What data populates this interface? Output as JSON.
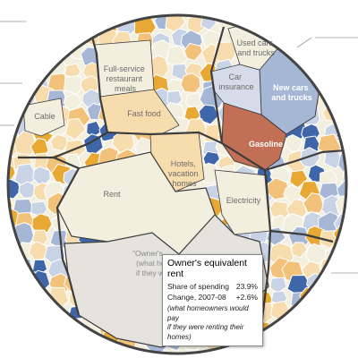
{
  "chart_data": {
    "type": "voronoi-treemap",
    "categories": [
      "Used cars and trucks",
      "Car insurance",
      "New cars and trucks",
      "Gasoline",
      "Full-service restaurant meals",
      "Fast food",
      "Cable",
      "Hotels, vacation homes",
      "Rent",
      "Electricity",
      "\"Owner's equivalent rent\" (what homeowners would pay if they were renting their homes)"
    ],
    "highlighted": "Owner's equivalent rent",
    "colors": {
      "increase_light": "#f7dcae",
      "increase_mid": "#f2c27a",
      "increase_strong": "#e8a934",
      "decrease_light": "#c9d3e6",
      "decrease_mid": "#a6b7d6",
      "decrease_strong": "#3f66a8",
      "gasoline": "#c27055",
      "neutral": "#f3efdf",
      "highlight": "#e4e3de",
      "border": "#3d3d3d"
    }
  },
  "labels": {
    "used_cars": [
      "Used cars",
      "and trucks"
    ],
    "car_insurance": [
      "Car",
      "insurance"
    ],
    "new_cars": [
      "New cars",
      "and trucks"
    ],
    "gasoline": "Gasoline",
    "restaurants": [
      "Full-service",
      "restaurant",
      "meals"
    ],
    "fast_food": "Fast food",
    "cable": "Cable",
    "hotels": [
      "Hotels,",
      "vacation",
      "homes"
    ],
    "rent": "Rent",
    "electricity": "Electricity",
    "oer": [
      "\"Owner's",
      "(what home",
      "if they w"
    ]
  },
  "tooltip": {
    "title": "Owner's equivalent rent",
    "share_label": "Share of spending",
    "share_value": "23.9%",
    "change_label": "Change, 2007-08",
    "change_value": "+2.6%",
    "note_lines": [
      "(what homeowners would pay",
      "if they were renting their",
      "homes)"
    ]
  }
}
